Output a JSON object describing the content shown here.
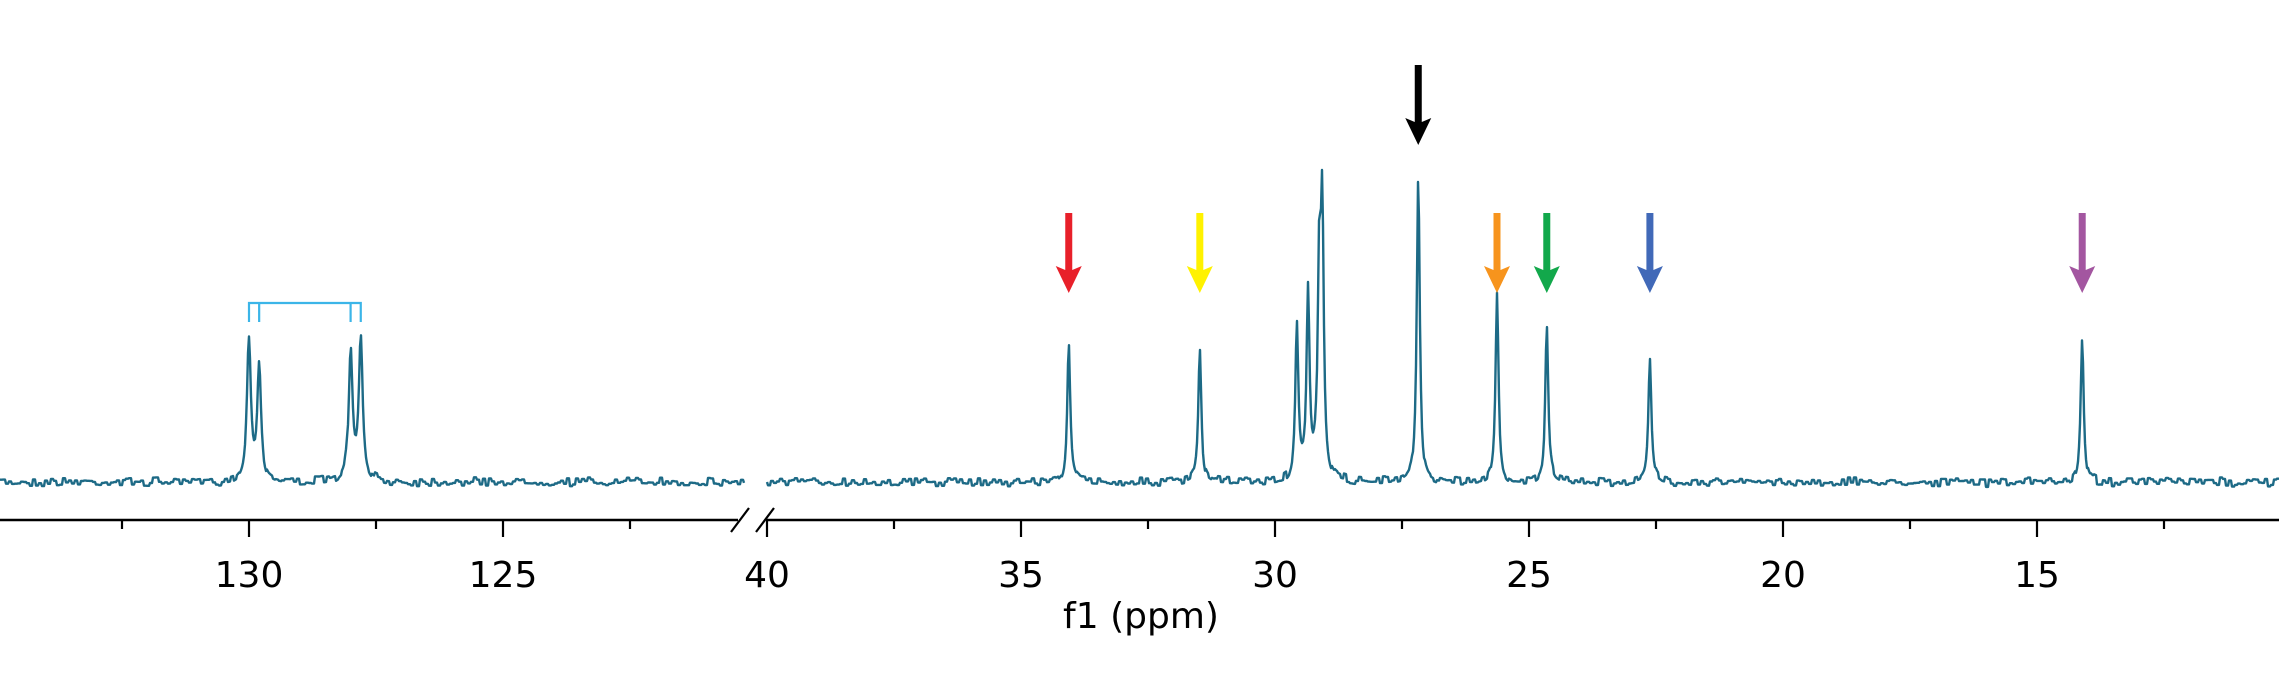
{
  "chart_data": {
    "type": "line",
    "title": "",
    "xlabel": "f1 (ppm)",
    "ylabel": "",
    "x_axis_reversed": true,
    "x_axis_broken": true,
    "grid": false,
    "segments": [
      {
        "xlim": [
          134.9,
          120.3
        ],
        "major_ticks": [
          130,
          125
        ],
        "minor_ticks": [
          132.5,
          127.5,
          122.5
        ],
        "tick_labels": [
          "130",
          "125"
        ]
      },
      {
        "xlim": [
          40,
          10.2
        ],
        "major_ticks": [
          40,
          35,
          30,
          25,
          20,
          15
        ],
        "minor_ticks": [
          37.5,
          32.5,
          27.5,
          22.5,
          17.5,
          12.5
        ],
        "tick_labels": [
          "40",
          "35",
          "30",
          "25",
          "20",
          "15"
        ]
      }
    ],
    "ylim": [
      0,
      100
    ],
    "line_color": "#1d6a86",
    "series": [
      {
        "peaks": [
          {
            "ppm": 130.0,
            "intensity": 47
          },
          {
            "ppm": 129.8,
            "intensity": 37
          },
          {
            "ppm": 128.0,
            "intensity": 42
          },
          {
            "ppm": 127.8,
            "intensity": 45
          },
          {
            "ppm": 34.06,
            "intensity": 46
          },
          {
            "ppm": 31.48,
            "intensity": 43
          },
          {
            "ppm": 29.57,
            "intensity": 50
          },
          {
            "ppm": 29.35,
            "intensity": 60
          },
          {
            "ppm": 29.13,
            "intensity": 65
          },
          {
            "ppm": 29.07,
            "intensity": 84
          },
          {
            "ppm": 27.18,
            "intensity": 100
          },
          {
            "ppm": 25.63,
            "intensity": 60
          },
          {
            "ppm": 24.65,
            "intensity": 50
          },
          {
            "ppm": 22.62,
            "intensity": 40
          },
          {
            "ppm": 14.11,
            "intensity": 48
          }
        ]
      }
    ],
    "annotations": {
      "arrows": [
        {
          "ppm": 34.06,
          "color": "#e8202a",
          "tier": "low"
        },
        {
          "ppm": 31.48,
          "color": "#fff200",
          "tier": "low"
        },
        {
          "ppm": 27.18,
          "color": "#000000",
          "tier": "high"
        },
        {
          "ppm": 25.63,
          "color": "#f7941d",
          "tier": "low"
        },
        {
          "ppm": 24.65,
          "color": "#12a84b",
          "tier": "low"
        },
        {
          "ppm": 22.62,
          "color": "#4169b8",
          "tier": "low"
        },
        {
          "ppm": 14.11,
          "color": "#a356a0",
          "tier": "low"
        }
      ],
      "bracket": {
        "color": "#3bb5e8",
        "ppm_legs": [
          130.0,
          129.8,
          128.0,
          127.8
        ]
      }
    }
  }
}
